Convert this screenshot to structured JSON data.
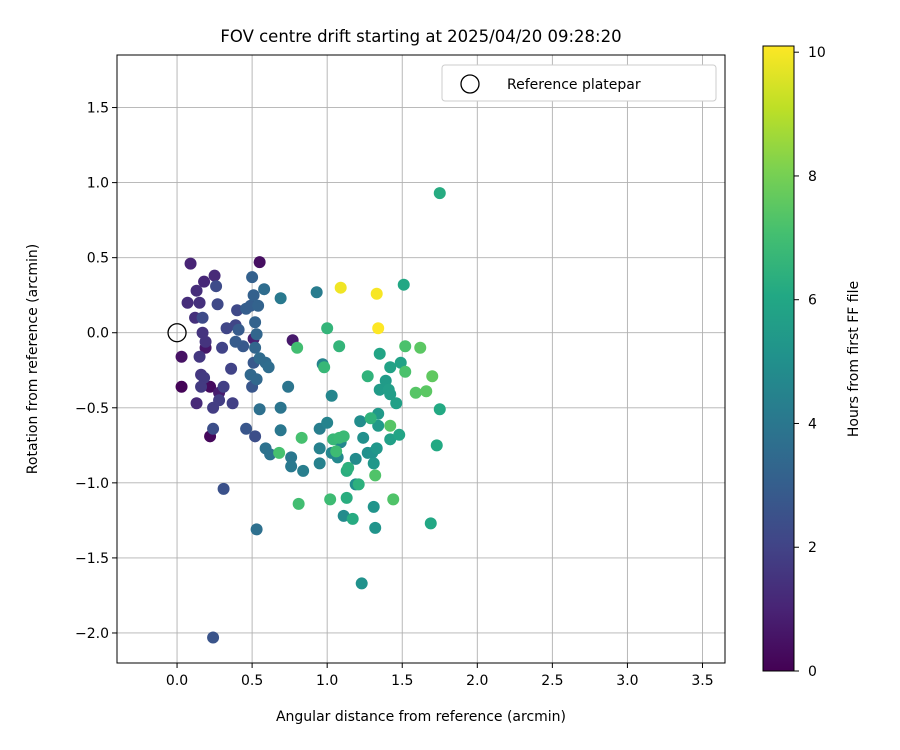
{
  "chart_data": {
    "type": "scatter",
    "title": "FOV centre drift starting at 2025/04/20 09:28:20",
    "xlabel": "Angular distance from reference (arcmin)",
    "ylabel": "Rotation from reference (arcmin)",
    "xlim": [
      -0.4,
      3.65
    ],
    "ylim": [
      -2.2,
      1.85
    ],
    "xticks": [
      "0.0",
      "0.5",
      "1.0",
      "1.5",
      "2.0",
      "2.5",
      "3.0",
      "3.5"
    ],
    "xtick_values": [
      0,
      0.5,
      1,
      1.5,
      2,
      2.5,
      3,
      3.5
    ],
    "yticks": [
      "−2.0",
      "−1.5",
      "−1.0",
      "−0.5",
      "0.0",
      "0.5",
      "1.0",
      "1.5"
    ],
    "ytick_values": [
      -2,
      -1.5,
      -1,
      -0.5,
      0,
      0.5,
      1,
      1.5
    ],
    "grid": true,
    "legend": {
      "placement": "top-right",
      "label": "Reference platepar",
      "marker": "open-circle"
    },
    "reference_point": {
      "x": 0,
      "y": 0
    },
    "colorbar": {
      "label": "Hours from first FF file",
      "colormap": "viridis",
      "range": [
        0,
        10.1
      ],
      "ticks": [
        "0",
        "2",
        "4",
        "6",
        "8",
        "10"
      ],
      "tick_values": [
        0,
        2,
        4,
        6,
        8,
        10
      ]
    },
    "points": [
      {
        "x": 0.03,
        "y": -0.36,
        "t": 0.1
      },
      {
        "x": 0.22,
        "y": -0.69,
        "t": 0.2
      },
      {
        "x": 0.22,
        "y": -0.36,
        "t": 0.3
      },
      {
        "x": 0.55,
        "y": 0.47,
        "t": 0.4
      },
      {
        "x": 0.03,
        "y": -0.16,
        "t": 0.5
      },
      {
        "x": 0.19,
        "y": -0.1,
        "t": 0.6
      },
      {
        "x": 0.77,
        "y": -0.05,
        "t": 0.7
      },
      {
        "x": 0.28,
        "y": -0.4,
        "t": 0.8
      },
      {
        "x": 0.51,
        "y": -0.04,
        "t": 0.9
      },
      {
        "x": 0.09,
        "y": 0.46,
        "t": 1.0
      },
      {
        "x": 0.18,
        "y": 0.34,
        "t": 1.1
      },
      {
        "x": 0.25,
        "y": 0.38,
        "t": 1.2
      },
      {
        "x": 0.13,
        "y": -0.47,
        "t": 1.2
      },
      {
        "x": 0.13,
        "y": 0.28,
        "t": 1.3
      },
      {
        "x": 0.07,
        "y": 0.2,
        "t": 1.3
      },
      {
        "x": 0.15,
        "y": 0.2,
        "t": 1.4
      },
      {
        "x": 0.12,
        "y": 0.1,
        "t": 1.4
      },
      {
        "x": 0.17,
        "y": 0.0,
        "t": 1.5
      },
      {
        "x": 0.19,
        "y": -0.06,
        "t": 1.5
      },
      {
        "x": 0.15,
        "y": -0.16,
        "t": 1.6
      },
      {
        "x": 0.16,
        "y": -0.28,
        "t": 1.6
      },
      {
        "x": 0.18,
        "y": -0.3,
        "t": 1.7
      },
      {
        "x": 0.16,
        "y": -0.36,
        "t": 1.7
      },
      {
        "x": 0.24,
        "y": -0.5,
        "t": 1.8
      },
      {
        "x": 0.28,
        "y": -0.45,
        "t": 1.8
      },
      {
        "x": 0.31,
        "y": -0.36,
        "t": 1.9
      },
      {
        "x": 0.37,
        "y": -0.47,
        "t": 1.9
      },
      {
        "x": 0.36,
        "y": -0.24,
        "t": 2.0
      },
      {
        "x": 0.3,
        "y": -0.1,
        "t": 2.0
      },
      {
        "x": 0.33,
        "y": 0.03,
        "t": 2.1
      },
      {
        "x": 0.39,
        "y": 0.05,
        "t": 2.1
      },
      {
        "x": 0.4,
        "y": 0.15,
        "t": 2.2
      },
      {
        "x": 0.27,
        "y": 0.19,
        "t": 2.2
      },
      {
        "x": 0.26,
        "y": 0.31,
        "t": 2.3
      },
      {
        "x": 0.17,
        "y": 0.1,
        "t": 2.3
      },
      {
        "x": 0.24,
        "y": -0.64,
        "t": 2.4
      },
      {
        "x": 0.52,
        "y": -0.69,
        "t": 2.4
      },
      {
        "x": 0.31,
        "y": -1.04,
        "t": 2.5
      },
      {
        "x": 0.24,
        "y": -2.03,
        "t": 2.6
      },
      {
        "x": 0.46,
        "y": -0.64,
        "t": 2.7
      },
      {
        "x": 0.5,
        "y": -0.36,
        "t": 2.7
      },
      {
        "x": 0.51,
        "y": -0.2,
        "t": 2.8
      },
      {
        "x": 0.44,
        "y": -0.09,
        "t": 2.8
      },
      {
        "x": 0.39,
        "y": -0.06,
        "t": 2.9
      },
      {
        "x": 0.41,
        "y": 0.02,
        "t": 2.9
      },
      {
        "x": 0.46,
        "y": 0.16,
        "t": 3.0
      },
      {
        "x": 0.49,
        "y": 0.18,
        "t": 3.0
      },
      {
        "x": 0.51,
        "y": 0.25,
        "t": 3.1
      },
      {
        "x": 0.5,
        "y": 0.37,
        "t": 3.1
      },
      {
        "x": 0.54,
        "y": 0.18,
        "t": 3.2
      },
      {
        "x": 0.52,
        "y": 0.07,
        "t": 3.2
      },
      {
        "x": 0.53,
        "y": -0.01,
        "t": 3.3
      },
      {
        "x": 0.52,
        "y": -0.1,
        "t": 3.3
      },
      {
        "x": 0.49,
        "y": -0.28,
        "t": 3.4
      },
      {
        "x": 0.53,
        "y": -0.31,
        "t": 3.4
      },
      {
        "x": 0.55,
        "y": -0.17,
        "t": 3.5
      },
      {
        "x": 0.59,
        "y": -0.2,
        "t": 3.5
      },
      {
        "x": 0.61,
        "y": -0.23,
        "t": 3.6
      },
      {
        "x": 0.58,
        "y": 0.29,
        "t": 3.6
      },
      {
        "x": 0.55,
        "y": -0.51,
        "t": 3.7
      },
      {
        "x": 0.53,
        "y": -1.31,
        "t": 3.7
      },
      {
        "x": 0.59,
        "y": -0.77,
        "t": 3.8
      },
      {
        "x": 0.62,
        "y": -0.81,
        "t": 3.8
      },
      {
        "x": 0.69,
        "y": -0.5,
        "t": 3.9
      },
      {
        "x": 0.74,
        "y": -0.36,
        "t": 3.9
      },
      {
        "x": 0.69,
        "y": -0.65,
        "t": 4.0
      },
      {
        "x": 0.76,
        "y": -0.83,
        "t": 4.0
      },
      {
        "x": 0.76,
        "y": -0.89,
        "t": 4.1
      },
      {
        "x": 0.69,
        "y": 0.23,
        "t": 4.1
      },
      {
        "x": 0.93,
        "y": 0.27,
        "t": 4.2
      },
      {
        "x": 0.84,
        "y": -0.92,
        "t": 4.3
      },
      {
        "x": 0.95,
        "y": -0.64,
        "t": 4.3
      },
      {
        "x": 0.95,
        "y": -0.77,
        "t": 4.4
      },
      {
        "x": 0.95,
        "y": -0.87,
        "t": 4.4
      },
      {
        "x": 0.97,
        "y": -0.21,
        "t": 4.5
      },
      {
        "x": 1.0,
        "y": -0.6,
        "t": 4.5
      },
      {
        "x": 1.03,
        "y": -0.42,
        "t": 4.6
      },
      {
        "x": 1.03,
        "y": -0.8,
        "t": 4.6
      },
      {
        "x": 1.09,
        "y": -0.73,
        "t": 4.7
      },
      {
        "x": 1.07,
        "y": -0.83,
        "t": 4.7
      },
      {
        "x": 1.11,
        "y": -1.22,
        "t": 4.8
      },
      {
        "x": 1.19,
        "y": -0.84,
        "t": 4.8
      },
      {
        "x": 1.19,
        "y": -1.01,
        "t": 4.9
      },
      {
        "x": 1.22,
        "y": -0.59,
        "t": 4.9
      },
      {
        "x": 1.24,
        "y": -0.7,
        "t": 5.0
      },
      {
        "x": 1.27,
        "y": -0.8,
        "t": 5.0
      },
      {
        "x": 1.3,
        "y": -0.8,
        "t": 5.1
      },
      {
        "x": 1.23,
        "y": -1.67,
        "t": 5.1
      },
      {
        "x": 1.32,
        "y": -1.3,
        "t": 5.2
      },
      {
        "x": 1.31,
        "y": -1.16,
        "t": 5.2
      },
      {
        "x": 1.31,
        "y": -0.87,
        "t": 5.3
      },
      {
        "x": 1.33,
        "y": -0.77,
        "t": 5.3
      },
      {
        "x": 1.34,
        "y": -0.62,
        "t": 5.4
      },
      {
        "x": 1.34,
        "y": -0.54,
        "t": 5.4
      },
      {
        "x": 1.35,
        "y": -0.38,
        "t": 5.5
      },
      {
        "x": 1.39,
        "y": -0.32,
        "t": 5.5
      },
      {
        "x": 1.41,
        "y": -0.38,
        "t": 5.6
      },
      {
        "x": 1.42,
        "y": -0.41,
        "t": 5.6
      },
      {
        "x": 1.42,
        "y": -0.71,
        "t": 5.7
      },
      {
        "x": 1.46,
        "y": -0.47,
        "t": 5.7
      },
      {
        "x": 1.42,
        "y": -0.23,
        "t": 5.8
      },
      {
        "x": 1.49,
        "y": -0.2,
        "t": 5.8
      },
      {
        "x": 1.35,
        "y": -0.14,
        "t": 5.9
      },
      {
        "x": 1.48,
        "y": -0.68,
        "t": 5.9
      },
      {
        "x": 1.51,
        "y": 0.32,
        "t": 6.0
      },
      {
        "x": 1.69,
        "y": -1.27,
        "t": 6.0
      },
      {
        "x": 1.75,
        "y": -0.51,
        "t": 6.1
      },
      {
        "x": 1.73,
        "y": -0.75,
        "t": 6.1
      },
      {
        "x": 1.75,
        "y": 0.93,
        "t": 6.2
      },
      {
        "x": 1.17,
        "y": -1.24,
        "t": 6.2
      },
      {
        "x": 1.13,
        "y": -1.1,
        "t": 6.3
      },
      {
        "x": 1.13,
        "y": -0.92,
        "t": 6.3
      },
      {
        "x": 1.14,
        "y": -0.9,
        "t": 6.4
      },
      {
        "x": 1.21,
        "y": -1.01,
        "t": 6.4
      },
      {
        "x": 1.29,
        "y": -0.57,
        "t": 6.5
      },
      {
        "x": 1.27,
        "y": -0.29,
        "t": 6.5
      },
      {
        "x": 1.0,
        "y": 0.03,
        "t": 6.6
      },
      {
        "x": 1.08,
        "y": -0.09,
        "t": 6.6
      },
      {
        "x": 0.98,
        "y": -0.23,
        "t": 6.7
      },
      {
        "x": 1.04,
        "y": -0.71,
        "t": 6.7
      },
      {
        "x": 1.08,
        "y": -0.7,
        "t": 6.8
      },
      {
        "x": 1.11,
        "y": -0.69,
        "t": 6.8
      },
      {
        "x": 1.06,
        "y": -0.79,
        "t": 6.9
      },
      {
        "x": 1.02,
        "y": -1.11,
        "t": 6.9
      },
      {
        "x": 0.81,
        "y": -1.14,
        "t": 7.0
      },
      {
        "x": 0.8,
        "y": -0.1,
        "t": 7.0
      },
      {
        "x": 0.83,
        "y": -0.7,
        "t": 7.1
      },
      {
        "x": 0.68,
        "y": -0.8,
        "t": 7.1
      },
      {
        "x": 1.52,
        "y": -0.09,
        "t": 7.2
      },
      {
        "x": 1.52,
        "y": -0.26,
        "t": 7.2
      },
      {
        "x": 1.44,
        "y": -1.11,
        "t": 7.3
      },
      {
        "x": 1.32,
        "y": -0.95,
        "t": 7.3
      },
      {
        "x": 1.42,
        "y": -0.62,
        "t": 7.4
      },
      {
        "x": 1.59,
        "y": -0.4,
        "t": 7.4
      },
      {
        "x": 1.62,
        "y": -0.1,
        "t": 7.5
      },
      {
        "x": 1.66,
        "y": -0.39,
        "t": 7.5
      },
      {
        "x": 1.7,
        "y": -0.29,
        "t": 7.6
      },
      {
        "x": 1.09,
        "y": 0.3,
        "t": 9.9
      },
      {
        "x": 1.33,
        "y": 0.26,
        "t": 10.0
      },
      {
        "x": 1.34,
        "y": 0.03,
        "t": 10.1
      }
    ]
  }
}
